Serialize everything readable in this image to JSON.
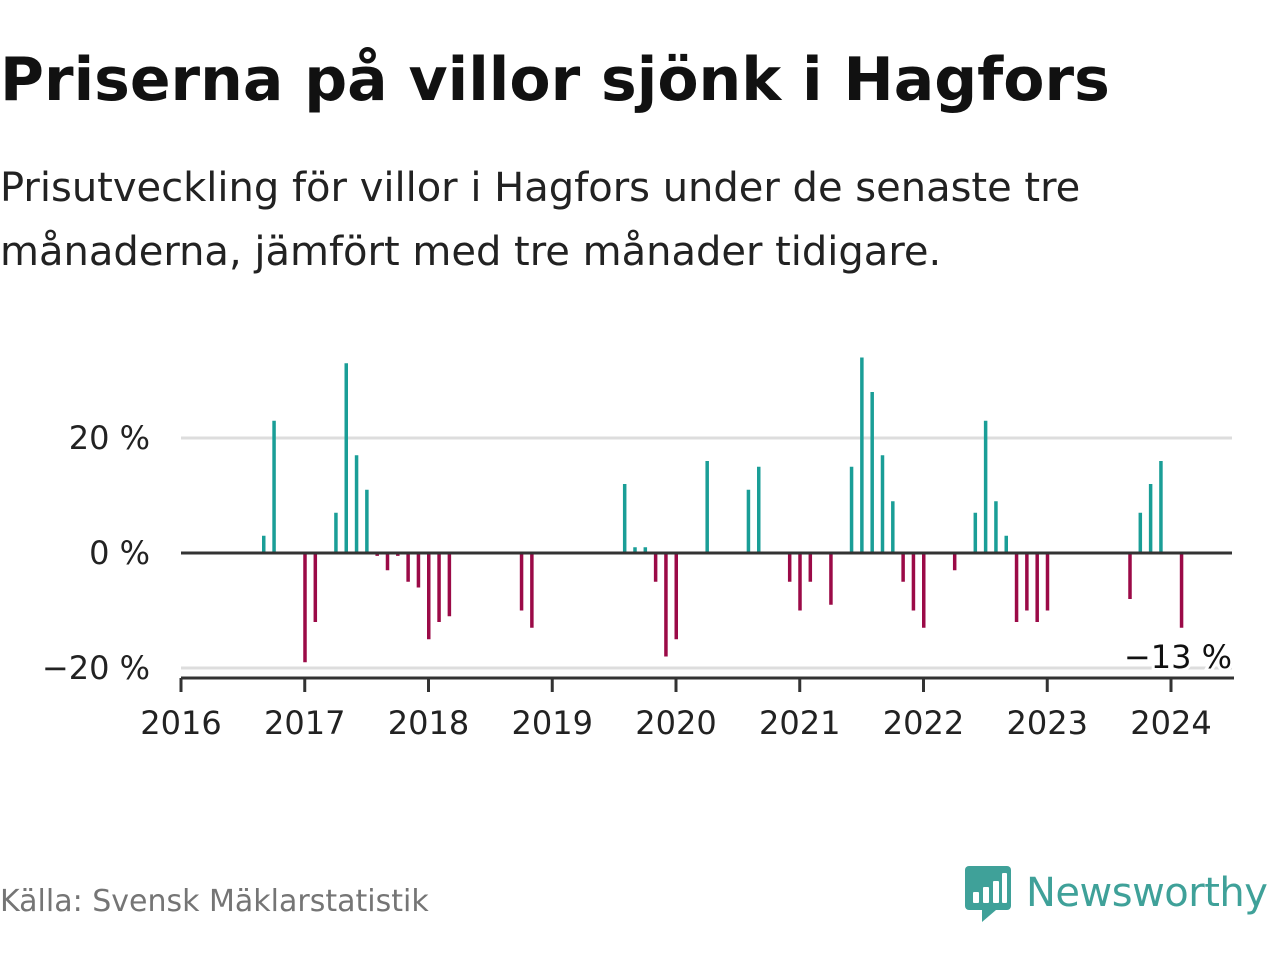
{
  "title": "Priserna på villor sjönk i Hagfors",
  "subtitle": "Prisutveckling för villor i Hagfors under de senaste tre månaderna, jämfört med tre månader tidigare.",
  "source": "Källa: Svensk Mäklarstatistik",
  "brand": {
    "name": "Newsworthy",
    "icon": "bar-chart-speech-icon",
    "color": "#3fa199"
  },
  "colors": {
    "positive": "#1a9e97",
    "negative": "#9b0a47",
    "grid": "#dddddd",
    "axis": "#333333"
  },
  "chart_data": {
    "type": "bar",
    "title": "Priserna på villor sjönk i Hagfors",
    "subtitle": "Prisutveckling för villor i Hagfors under de senaste tre månaderna, jämfört med tre månader tidigare.",
    "xlabel": "",
    "ylabel": "",
    "y_unit": "%",
    "ylim": [
      -22,
      36
    ],
    "yticks": [
      -20,
      0,
      20
    ],
    "ytick_labels": [
      "−20 %",
      "0 %",
      "20 %"
    ],
    "xticks": [
      "2016",
      "2017",
      "2018",
      "2019",
      "2020",
      "2021",
      "2022",
      "2023",
      "2024"
    ],
    "grid": true,
    "last_value_label": "−13 %",
    "points": [
      {
        "date": "2016-09",
        "value": 3
      },
      {
        "date": "2016-10",
        "value": 23
      },
      {
        "date": "2017-01",
        "value": -19
      },
      {
        "date": "2017-02",
        "value": -12
      },
      {
        "date": "2017-04",
        "value": 7
      },
      {
        "date": "2017-05",
        "value": 33
      },
      {
        "date": "2017-06",
        "value": 17
      },
      {
        "date": "2017-07",
        "value": 11
      },
      {
        "date": "2017-08",
        "value": -0.5
      },
      {
        "date": "2017-09",
        "value": -3
      },
      {
        "date": "2017-10",
        "value": -0.5
      },
      {
        "date": "2017-11",
        "value": -5
      },
      {
        "date": "2017-12",
        "value": -6
      },
      {
        "date": "2018-01",
        "value": -15
      },
      {
        "date": "2018-02",
        "value": -12
      },
      {
        "date": "2018-03",
        "value": -11
      },
      {
        "date": "2018-10",
        "value": -10
      },
      {
        "date": "2018-11",
        "value": -13
      },
      {
        "date": "2019-08",
        "value": 12
      },
      {
        "date": "2019-09",
        "value": 1
      },
      {
        "date": "2019-10",
        "value": 1
      },
      {
        "date": "2019-11",
        "value": -5
      },
      {
        "date": "2019-12",
        "value": -18
      },
      {
        "date": "2020-01",
        "value": -15
      },
      {
        "date": "2020-04",
        "value": 16
      },
      {
        "date": "2020-08",
        "value": 11
      },
      {
        "date": "2020-09",
        "value": 15
      },
      {
        "date": "2020-12",
        "value": -5
      },
      {
        "date": "2021-01",
        "value": -10
      },
      {
        "date": "2021-02",
        "value": -5
      },
      {
        "date": "2021-04",
        "value": -9
      },
      {
        "date": "2021-06",
        "value": 15
      },
      {
        "date": "2021-07",
        "value": 34
      },
      {
        "date": "2021-08",
        "value": 28
      },
      {
        "date": "2021-09",
        "value": 17
      },
      {
        "date": "2021-10",
        "value": 9
      },
      {
        "date": "2021-11",
        "value": -5
      },
      {
        "date": "2021-12",
        "value": -10
      },
      {
        "date": "2022-01",
        "value": -13
      },
      {
        "date": "2022-04",
        "value": -3
      },
      {
        "date": "2022-06",
        "value": 7
      },
      {
        "date": "2022-07",
        "value": 23
      },
      {
        "date": "2022-08",
        "value": 9
      },
      {
        "date": "2022-09",
        "value": 3
      },
      {
        "date": "2022-10",
        "value": -12
      },
      {
        "date": "2022-11",
        "value": -10
      },
      {
        "date": "2022-12",
        "value": -12
      },
      {
        "date": "2023-01",
        "value": -10
      },
      {
        "date": "2023-09",
        "value": -8
      },
      {
        "date": "2023-10",
        "value": 7
      },
      {
        "date": "2023-11",
        "value": 12
      },
      {
        "date": "2023-12",
        "value": 16
      },
      {
        "date": "2024-02",
        "value": -13
      }
    ]
  }
}
